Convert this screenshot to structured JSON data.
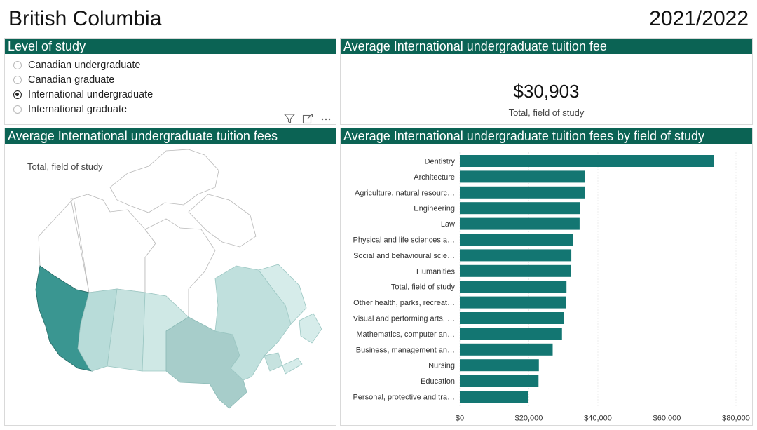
{
  "header": {
    "province": "British Columbia",
    "year": "2021/2022"
  },
  "level_panel": {
    "title": "Level of study",
    "options": [
      {
        "label": "Canadian undergraduate",
        "selected": false
      },
      {
        "label": "Canadian graduate",
        "selected": false
      },
      {
        "label": "International undergraduate",
        "selected": true
      },
      {
        "label": "International graduate",
        "selected": false
      }
    ],
    "toolbar": [
      "filter-icon",
      "focus-mode-icon",
      "more-options-icon"
    ]
  },
  "kpi_panel": {
    "title": "Average International undergraduate tuition fee",
    "value": "$30,903",
    "label": "Total, field of study"
  },
  "map_panel": {
    "title": "Average International undergraduate tuition fees",
    "label": "Total, field of study",
    "highlight_color": "#3a9691"
  },
  "chart_panel": {
    "title": "Average International undergraduate tuition fees by field of study"
  },
  "colors": {
    "header_bg": "#0b6354",
    "bar": "#137672"
  },
  "chart_data": {
    "type": "bar",
    "orientation": "horizontal",
    "categories": [
      "Dentistry",
      "Architecture",
      "Agriculture, natural resourc…",
      "Engineering",
      "Law",
      "Physical and life sciences a…",
      "Social and behavioural scie…",
      "Humanities",
      "Total, field of study",
      "Other health, parks, recreat…",
      "Visual and performing arts, …",
      "Mathematics, computer an…",
      "Business, management an…",
      "Nursing",
      "Education",
      "Personal, protective and tra…"
    ],
    "values": [
      73700,
      36200,
      36200,
      34800,
      34700,
      32700,
      32300,
      32200,
      30903,
      30800,
      30100,
      29600,
      26900,
      22900,
      22800,
      19800
    ],
    "xlim": [
      0,
      80000
    ],
    "xticks": [
      "$0",
      "$20,000",
      "$40,000",
      "$60,000",
      "$80,000"
    ],
    "grid": true
  }
}
